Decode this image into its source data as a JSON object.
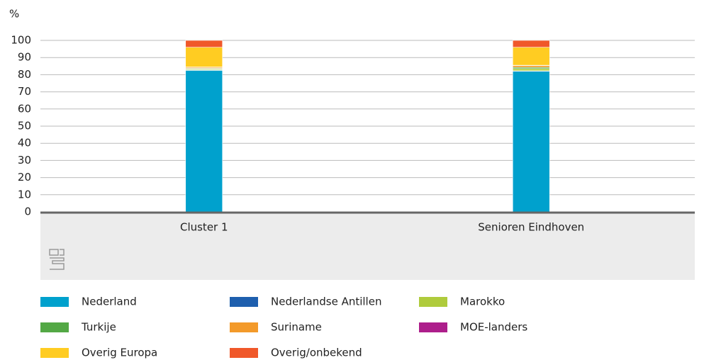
{
  "chart_data": {
    "type": "stacked-bar",
    "y_unit_label": "%",
    "categories": [
      "Cluster 1",
      "Senioren Eindhoven"
    ],
    "series": [
      {
        "name": "Nederland",
        "color": "#00a1cd",
        "values": [
          82.5,
          82
        ]
      },
      {
        "name": "Nederlandse Antillen",
        "color": "#1e5fae",
        "values": [
          0.3,
          0.3
        ]
      },
      {
        "name": "Marokko",
        "color": "#afcb3c",
        "values": [
          0.5,
          1.2
        ]
      },
      {
        "name": "Turkije",
        "color": "#53a845",
        "values": [
          0.4,
          0.8
        ]
      },
      {
        "name": "Suriname",
        "color": "#f39a2a",
        "values": [
          0.6,
          1.0
        ]
      },
      {
        "name": "MOE-landers",
        "color": "#ad1e8b",
        "values": [
          0.2,
          0.2
        ]
      },
      {
        "name": "Overig Europa",
        "color": "#ffcc22",
        "values": [
          11.5,
          10.5
        ]
      },
      {
        "name": "Overig/onbekend",
        "color": "#f0582a",
        "values": [
          4.0,
          4.0
        ]
      }
    ],
    "ylim": [
      0,
      100
    ],
    "yticks": [
      0,
      10,
      20,
      30,
      40,
      50,
      60,
      70,
      80,
      90,
      100
    ],
    "grid": true
  }
}
